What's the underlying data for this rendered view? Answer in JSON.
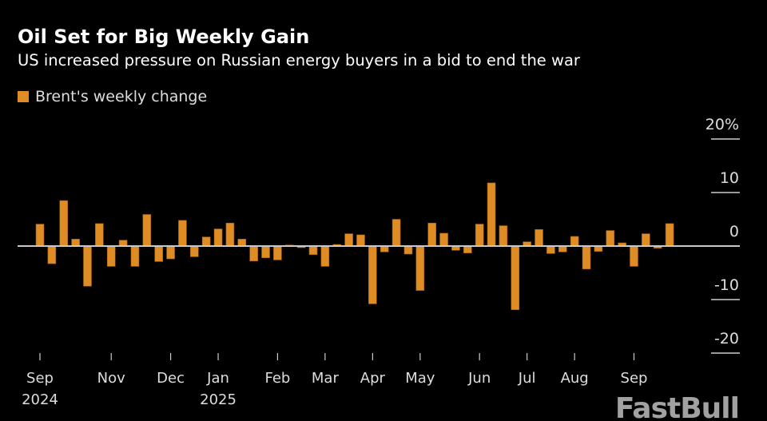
{
  "chart_data": {
    "type": "bar",
    "title": "Oil Set for Big Weekly Gain",
    "subtitle": "US increased pressure on Russian energy buyers in a bid to end the war",
    "series": [
      {
        "name": "Brent's weekly change",
        "color": "#e08c24",
        "values": [
          4.1,
          -3.3,
          8.5,
          1.3,
          -7.5,
          4.2,
          -3.8,
          1.1,
          -3.8,
          5.9,
          -2.9,
          -2.4,
          4.8,
          -2.0,
          1.7,
          3.2,
          4.3,
          1.3,
          -2.8,
          -2.2,
          -2.6,
          0.2,
          -0.3,
          -1.6,
          -3.8,
          0.3,
          2.3,
          2.1,
          -10.8,
          -1.1,
          5.0,
          -1.5,
          -8.3,
          4.3,
          2.4,
          -0.8,
          -1.3,
          4.1,
          11.8,
          3.8,
          -11.9,
          0.8,
          3.1,
          -1.4,
          -1.1,
          1.8,
          -4.3,
          -1.0,
          2.9,
          0.6,
          -3.8,
          2.3,
          -0.4,
          4.2
        ]
      }
    ],
    "x_ticks": [
      {
        "label": "Sep",
        "year": "2024"
      },
      {
        "label": "Nov",
        "year": ""
      },
      {
        "label": "Dec",
        "year": ""
      },
      {
        "label": "Jan",
        "year": "2025"
      },
      {
        "label": "Feb",
        "year": ""
      },
      {
        "label": "Mar",
        "year": ""
      },
      {
        "label": "Apr",
        "year": ""
      },
      {
        "label": "May",
        "year": ""
      },
      {
        "label": "Jun",
        "year": ""
      },
      {
        "label": "Jul",
        "year": ""
      },
      {
        "label": "Aug",
        "year": ""
      },
      {
        "label": "Sep",
        "year": ""
      }
    ],
    "y_ticks": [
      "20%",
      "10",
      "0",
      "-10",
      "-20"
    ],
    "y_tick_values": [
      20,
      10,
      0,
      -10,
      -20
    ],
    "ylim": [
      -20,
      20
    ],
    "ylabel": "",
    "xlabel": "",
    "axis_side": "right",
    "grid": false,
    "legend_position": "top-left"
  },
  "watermark": "FastBull"
}
